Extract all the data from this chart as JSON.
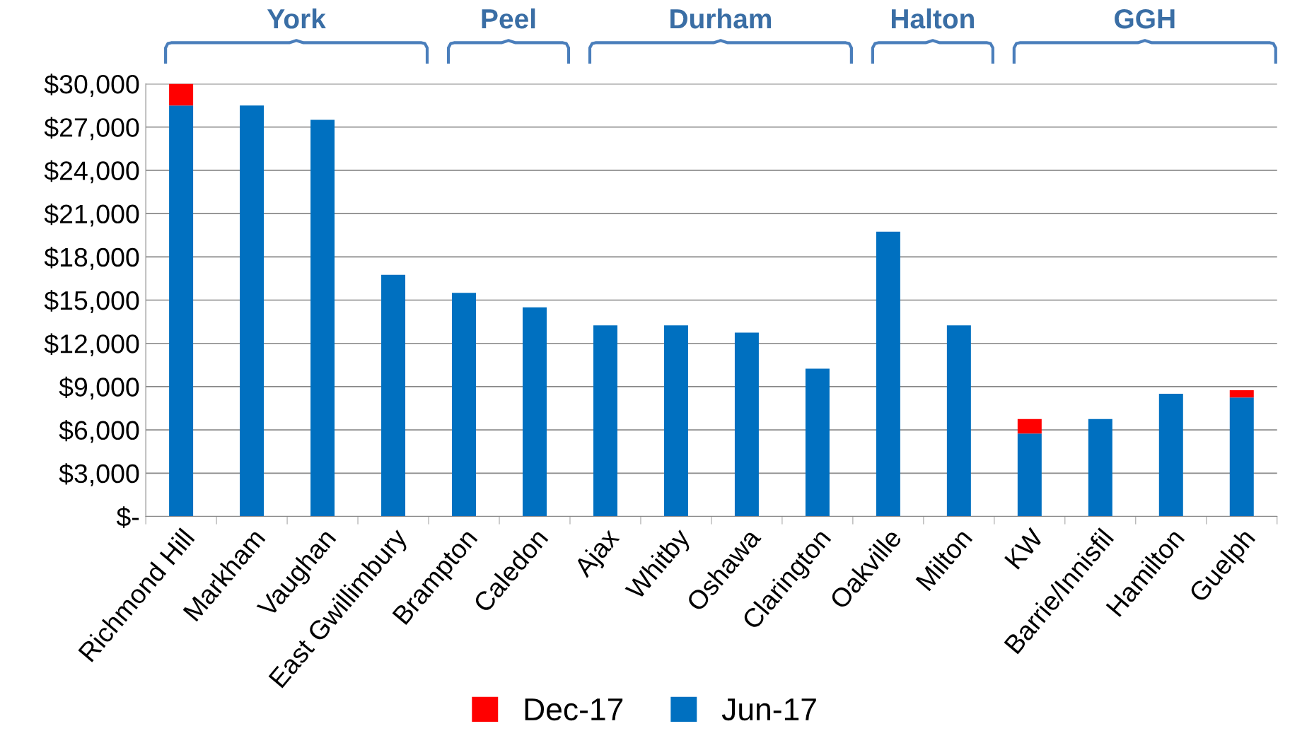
{
  "chart_data": {
    "type": "bar",
    "stacked": true,
    "categories": [
      "Richmond Hill",
      "Markham",
      "Vaughan",
      "East Gwillimbury",
      "Brampton",
      "Caledon",
      "Ajax",
      "Whitby",
      "Oshawa",
      "Clarington",
      "Oakville",
      "Milton",
      "KW",
      "Barrie/Innisfil",
      "Hamilton",
      "Guelph"
    ],
    "series": [
      {
        "name": "Jun-17",
        "color": "#0070c0",
        "values": [
          28500,
          28500,
          27500,
          16750,
          15500,
          14500,
          13250,
          13250,
          12750,
          10250,
          19750,
          13250,
          5750,
          6750,
          8500,
          8250
        ]
      },
      {
        "name": "Dec-17",
        "color": "#ff0000",
        "values": [
          1500,
          0,
          0,
          0,
          0,
          0,
          0,
          0,
          0,
          0,
          0,
          0,
          1000,
          0,
          0,
          500
        ]
      }
    ],
    "ylim": [
      0,
      30000
    ],
    "yticks": [
      {
        "value": 0,
        "label": "$-"
      },
      {
        "value": 3000,
        "label": "$3,000"
      },
      {
        "value": 6000,
        "label": "$6,000"
      },
      {
        "value": 9000,
        "label": "$9,000"
      },
      {
        "value": 12000,
        "label": "$12,000"
      },
      {
        "value": 15000,
        "label": "$15,000"
      },
      {
        "value": 18000,
        "label": "$18,000"
      },
      {
        "value": 21000,
        "label": "$21,000"
      },
      {
        "value": 24000,
        "label": "$24,000"
      },
      {
        "value": 27000,
        "label": "$27,000"
      },
      {
        "value": 30000,
        "label": "$30,000"
      }
    ],
    "grid": "y",
    "legend": "bottom",
    "annotations": [
      "York",
      "Peel",
      "Durham",
      "Halton",
      "GGH"
    ]
  }
}
